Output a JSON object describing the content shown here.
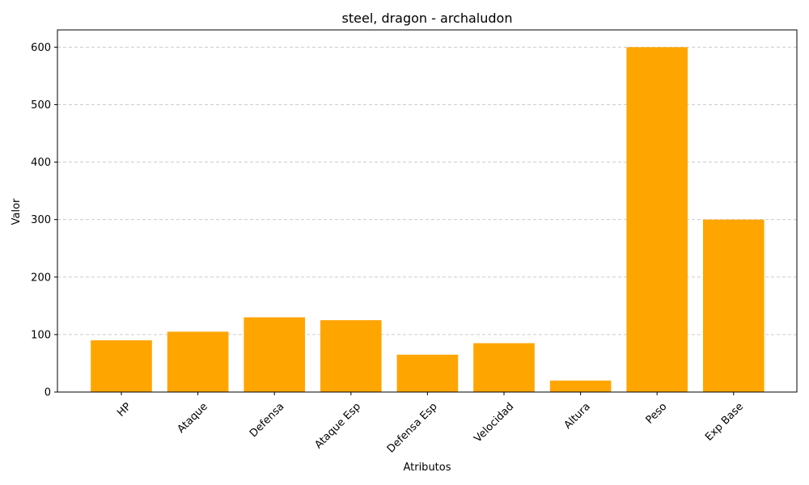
{
  "chart_data": {
    "type": "bar",
    "title": "steel, dragon - archaludon",
    "xlabel": "Atributos",
    "ylabel": "Valor",
    "categories": [
      "HP",
      "Ataque",
      "Defensa",
      "Ataque Esp",
      "Defensa Esp",
      "Velocidad",
      "Altura",
      "Peso",
      "Exp Base"
    ],
    "values": [
      90,
      105,
      130,
      125,
      65,
      85,
      20,
      600,
      300
    ],
    "ylim": [
      0,
      630
    ],
    "yticks": [
      0,
      100,
      200,
      300,
      400,
      500,
      600
    ],
    "bar_color": "#FFA500",
    "grid": "y-dashed",
    "grid_color": "#cccccc"
  }
}
